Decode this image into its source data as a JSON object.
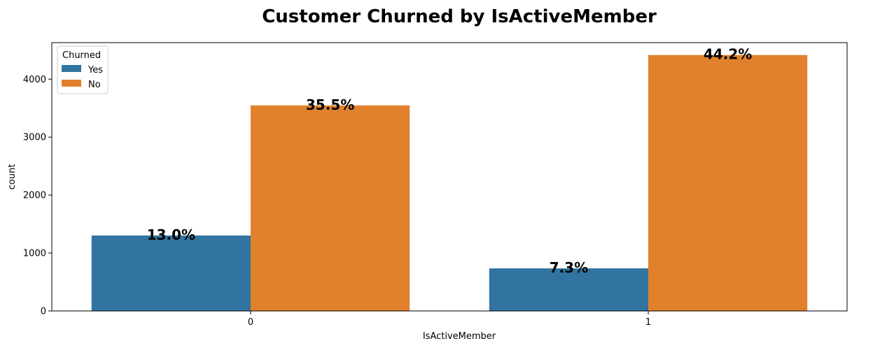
{
  "chart_data": {
    "type": "bar",
    "title": "Customer Churned by IsActiveMember",
    "xlabel": "IsActiveMember",
    "ylabel": "count",
    "categories": [
      "0",
      "1"
    ],
    "ylim": [
      0,
      4630
    ],
    "yticks": [
      0,
      1000,
      2000,
      3000,
      4000
    ],
    "series": [
      {
        "name": "Yes",
        "color": "#3274a1",
        "values": [
          1302,
          735
        ],
        "data_labels": [
          "13.0%",
          "7.3%"
        ]
      },
      {
        "name": "No",
        "color": "#e1812c",
        "values": [
          3547,
          4416
        ],
        "data_labels": [
          "35.5%",
          "44.2%"
        ]
      }
    ],
    "legend": {
      "title": "Churned",
      "placement": "upper-left"
    },
    "grid": false
  }
}
